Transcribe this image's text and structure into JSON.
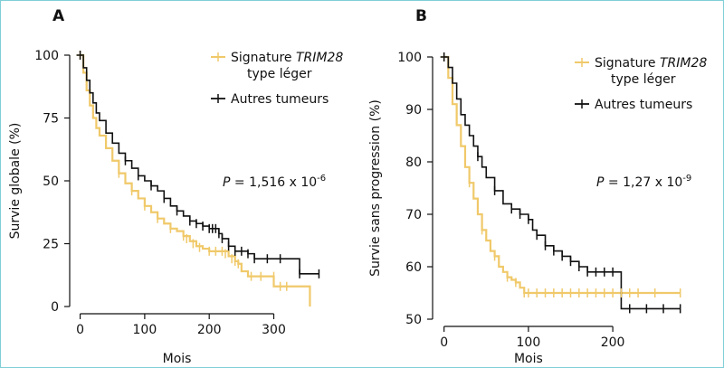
{
  "colors": {
    "signature": "#f0c96a",
    "others": "#111111",
    "frame": "#7fcfd7"
  },
  "chart_data": [
    {
      "type": "line",
      "panel_label": "A",
      "xlabel": "Mois",
      "ylabel": "Survie globale (%)",
      "xlim": [
        -5,
        375
      ],
      "ylim": [
        0,
        100
      ],
      "x_ticks": [
        0,
        100,
        200,
        300
      ],
      "y_ticks": [
        0,
        25,
        50,
        75,
        100
      ],
      "annotation": {
        "text": "P = 1,516 x 10",
        "exponent": "-6"
      },
      "legend": {
        "position": "top-right",
        "entries": [
          {
            "label_plain": "Signature ",
            "label_italic": "TRIM28",
            "label_line2": "type léger",
            "color": "#f0c96a"
          },
          {
            "label_plain": "Autres tumeurs",
            "color": "#111111"
          }
        ]
      },
      "series": [
        {
          "name": "Signature TRIM28 type léger",
          "color": "#f0c96a",
          "x": [
            0,
            5,
            10,
            15,
            20,
            25,
            30,
            40,
            50,
            60,
            70,
            80,
            90,
            100,
            110,
            120,
            130,
            140,
            150,
            160,
            170,
            180,
            190,
            200,
            210,
            220,
            230,
            240,
            245,
            250,
            260,
            270,
            280,
            290,
            300,
            320,
            340,
            350,
            356
          ],
          "y": [
            100,
            93,
            86,
            80,
            75,
            71,
            68,
            63,
            58,
            53,
            49,
            46,
            43,
            40,
            37.5,
            35,
            33,
            31,
            30,
            28,
            26,
            24,
            23,
            22,
            22,
            22,
            20,
            18,
            17,
            14,
            12,
            12,
            12,
            12,
            8,
            8,
            8,
            8,
            0
          ],
          "censor_x": [
            60,
            80,
            100,
            120,
            140,
            160,
            165,
            175,
            185,
            200,
            210,
            220,
            225,
            235,
            240,
            245,
            265,
            280,
            300,
            310,
            320
          ],
          "censor_y": [
            53,
            46,
            40,
            35,
            31,
            28,
            27,
            25,
            23.5,
            22,
            22,
            22,
            21,
            19,
            18,
            17,
            12,
            12,
            12,
            8,
            8
          ]
        },
        {
          "name": "Autres tumeurs",
          "color": "#111111",
          "x": [
            0,
            5,
            10,
            15,
            20,
            25,
            30,
            40,
            50,
            60,
            70,
            80,
            90,
            100,
            110,
            120,
            130,
            140,
            150,
            160,
            170,
            180,
            190,
            200,
            210,
            215,
            220,
            230,
            240,
            250,
            260,
            270,
            290,
            300,
            320,
            340,
            370
          ],
          "y": [
            100,
            95,
            90,
            85,
            81,
            77,
            74,
            69,
            65,
            61,
            58,
            55,
            52,
            50,
            48,
            46,
            43,
            40,
            38,
            36,
            34,
            33,
            32,
            31,
            31,
            29,
            27,
            24,
            22,
            22,
            21,
            19,
            19,
            19,
            19,
            13,
            13
          ],
          "censor_x": [
            70,
            90,
            110,
            130,
            150,
            170,
            180,
            190,
            200,
            205,
            210,
            215,
            220,
            230,
            240,
            250,
            260,
            270,
            290,
            310,
            340,
            370
          ],
          "censor_y": [
            58,
            52,
            48,
            43,
            38,
            34,
            33,
            32,
            31,
            31,
            31,
            29,
            27,
            24,
            22,
            22,
            21,
            19,
            19,
            19,
            13,
            13
          ]
        }
      ]
    },
    {
      "type": "line",
      "panel_label": "B",
      "xlabel": "Mois",
      "ylabel": "Survie sans progression (%)",
      "xlim": [
        -5,
        290
      ],
      "ylim": [
        50,
        100
      ],
      "x_ticks": [
        0,
        100,
        200
      ],
      "y_ticks": [
        50,
        60,
        70,
        80,
        90,
        100
      ],
      "annotation": {
        "text": "P = 1,27 x 10",
        "exponent": "-9"
      },
      "legend": {
        "position": "top-right",
        "entries": [
          {
            "label_plain": "Signature ",
            "label_italic": "TRIM28",
            "label_line2": "type léger",
            "color": "#f0c96a"
          },
          {
            "label_plain": "Autres tumeurs",
            "color": "#111111"
          }
        ]
      },
      "series": [
        {
          "name": "Signature TRIM28 type léger",
          "color": "#f0c96a",
          "x": [
            0,
            5,
            10,
            15,
            20,
            25,
            30,
            35,
            40,
            45,
            50,
            55,
            60,
            65,
            70,
            75,
            80,
            85,
            90,
            95,
            100,
            120,
            150,
            200,
            250,
            280
          ],
          "y": [
            100,
            96,
            91,
            87,
            83,
            79,
            76,
            73,
            70,
            67,
            65,
            63,
            62,
            60,
            59,
            58,
            57.5,
            57,
            56,
            55,
            55,
            55,
            55,
            55,
            55,
            55
          ],
          "censor_x": [
            30,
            45,
            60,
            75,
            85,
            95,
            100,
            110,
            120,
            130,
            140,
            150,
            160,
            170,
            180,
            190,
            200,
            210,
            220,
            230,
            250,
            280
          ],
          "censor_y": [
            76,
            67,
            62,
            58,
            57,
            55,
            55,
            55,
            55,
            55,
            55,
            55,
            55,
            55,
            55,
            55,
            55,
            55,
            55,
            55,
            55,
            55
          ]
        },
        {
          "name": "Autres tumeurs",
          "color": "#111111",
          "x": [
            0,
            5,
            10,
            15,
            20,
            25,
            30,
            35,
            40,
            45,
            50,
            60,
            70,
            80,
            90,
            100,
            105,
            110,
            120,
            130,
            140,
            150,
            160,
            170,
            180,
            190,
            200,
            210,
            220,
            250,
            280
          ],
          "y": [
            100,
            98,
            95,
            92,
            89,
            87,
            85,
            83,
            81,
            79,
            77,
            74.5,
            72,
            71,
            70,
            69,
            67,
            66,
            64,
            63,
            62,
            61,
            60,
            59,
            59,
            59,
            59,
            52,
            52,
            52,
            52
          ],
          "censor_x": [
            40,
            60,
            80,
            90,
            100,
            110,
            120,
            130,
            140,
            150,
            160,
            170,
            180,
            190,
            200,
            220,
            240,
            260,
            280
          ],
          "censor_y": [
            81,
            74.5,
            71,
            70,
            69,
            66,
            64,
            63,
            62,
            61,
            60,
            59,
            59,
            59,
            59,
            52,
            52,
            52,
            52
          ]
        }
      ]
    }
  ]
}
